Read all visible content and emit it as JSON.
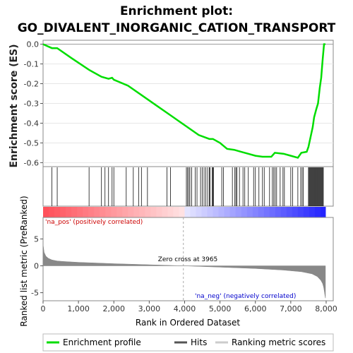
{
  "chart_data": [
    {
      "type": "line",
      "title_line1": "Enrichment plot:",
      "title_line2": "GO_DIVALENT_INORGANIC_CATION_TRANSPORT",
      "ylabel": "Enrichment score (ES)",
      "ylim": [
        -0.62,
        0.02
      ],
      "yticks": [
        "0.0",
        "-0.1",
        "-0.2",
        "-0.3",
        "-0.4",
        "-0.5",
        "-0.6"
      ],
      "ytick_values": [
        0.0,
        -0.1,
        -0.2,
        -0.3,
        -0.4,
        -0.5,
        -0.6
      ],
      "xlim": [
        0,
        8200
      ],
      "color": "#00dd00",
      "series": [
        {
          "name": "Enrichment profile",
          "x": [
            0,
            250,
            400,
            800,
            1300,
            1650,
            1850,
            1950,
            2000,
            2400,
            2800,
            3200,
            3600,
            4000,
            4400,
            4700,
            4800,
            5000,
            5200,
            5400,
            5600,
            5800,
            6000,
            6200,
            6300,
            6450,
            6550,
            6800,
            7000,
            7200,
            7300,
            7450,
            7500,
            7560,
            7620,
            7660,
            7720,
            7770,
            7820,
            7860,
            7900,
            7940,
            7980
          ],
          "y": [
            0.0,
            -0.02,
            -0.02,
            -0.07,
            -0.13,
            -0.165,
            -0.175,
            -0.17,
            -0.18,
            -0.21,
            -0.26,
            -0.31,
            -0.36,
            -0.41,
            -0.46,
            -0.48,
            -0.48,
            -0.5,
            -0.53,
            -0.535,
            -0.545,
            -0.555,
            -0.565,
            -0.57,
            -0.57,
            -0.57,
            -0.55,
            -0.555,
            -0.565,
            -0.575,
            -0.55,
            -0.545,
            -0.52,
            -0.47,
            -0.42,
            -0.37,
            -0.33,
            -0.3,
            -0.22,
            -0.17,
            -0.08,
            0.0,
            0.0
          ]
        }
      ],
      "hits": [
        250,
        400,
        1300,
        1650,
        1750,
        1850,
        1950,
        2000,
        2350,
        2550,
        2700,
        2780,
        2950,
        3500,
        3600,
        4050,
        4080,
        4120,
        4150,
        4200,
        4300,
        4350,
        4450,
        4500,
        4550,
        4600,
        4650,
        4700,
        4720,
        4780,
        4800,
        4820,
        5050,
        5100,
        5350,
        5420,
        5450,
        5480,
        5550,
        5650,
        5700,
        5800,
        5950,
        6000,
        6100,
        6200,
        6250,
        6400,
        6480,
        6520,
        6560,
        6600,
        6700,
        6780,
        6820,
        7000,
        7050,
        7200,
        7280,
        7320,
        7350,
        7500,
        7520,
        7540,
        7560,
        7580,
        7600,
        7620,
        7640,
        7660,
        7680,
        7700,
        7720,
        7740,
        7760,
        7780,
        7800,
        7820,
        7840,
        7860,
        7880,
        7900,
        7920
      ]
    },
    {
      "type": "area",
      "ylabel": "Ranked list metric (PreRanked)",
      "xlabel": "Rank in Ordered Dataset",
      "ylim": [
        -6.5,
        9
      ],
      "yticks": [
        "5",
        "0",
        "-5"
      ],
      "ytick_values": [
        5,
        0,
        -5
      ],
      "xlim": [
        0,
        8200
      ],
      "xticks": [
        "0",
        "1,000",
        "2,000",
        "3,000",
        "4,000",
        "5,000",
        "6,000",
        "7,000",
        "8,000"
      ],
      "xtick_values": [
        0,
        1000,
        2000,
        3000,
        4000,
        5000,
        6000,
        7000,
        8000
      ],
      "color": "#888888",
      "zero_cross_label": "Zero cross at 3965",
      "zero_cross": 3965,
      "pos_label": "'na_pos' (positively correlated)",
      "neg_label": "'na_neg' (negatively correlated)",
      "x": [
        0,
        30,
        80,
        150,
        250,
        400,
        600,
        1000,
        2000,
        3000,
        3965,
        5000,
        6000,
        6800,
        7300,
        7600,
        7750,
        7850,
        7900,
        7930,
        7950,
        7970,
        7980
      ],
      "y": [
        4.0,
        2.5,
        1.8,
        1.4,
        1.1,
        0.9,
        0.8,
        0.65,
        0.4,
        0.2,
        0.0,
        -0.25,
        -0.5,
        -0.8,
        -1.1,
        -1.5,
        -2.0,
        -2.7,
        -3.3,
        -4.0,
        -4.8,
        -5.7,
        -6.0
      ]
    }
  ],
  "legend": [
    {
      "label": "Enrichment profile",
      "color": "#00dd00"
    },
    {
      "label": "Hits",
      "color": "#555555"
    },
    {
      "label": "Ranking metric scores",
      "color": "#cccccc"
    }
  ]
}
